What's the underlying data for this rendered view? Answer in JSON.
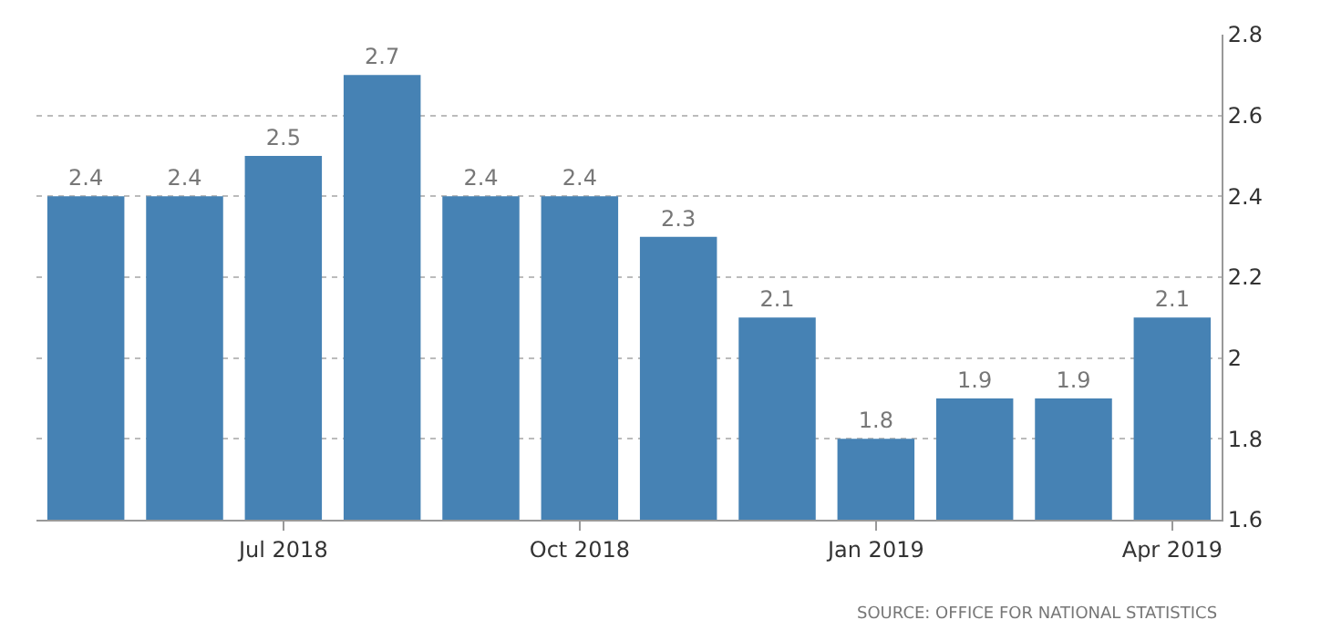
{
  "chart_data": {
    "type": "bar",
    "categories": [
      null,
      null,
      "Jul 2018",
      null,
      null,
      "Oct 2018",
      null,
      null,
      "Jan 2019",
      null,
      null,
      "Apr 2019"
    ],
    "values": [
      2.4,
      2.4,
      2.5,
      2.7,
      2.4,
      2.4,
      2.3,
      2.1,
      1.8,
      1.9,
      1.9,
      2.1
    ],
    "color": "#4682b4",
    "ylim": [
      1.6,
      2.8
    ],
    "yticks": [
      1.6,
      1.8,
      2,
      2.2,
      2.4,
      2.6,
      2.8
    ],
    "grid": "y",
    "data_labels": true,
    "legend": false,
    "annotations": [
      "SOURCE: OFFICE FOR NATIONAL STATISTICS"
    ]
  }
}
